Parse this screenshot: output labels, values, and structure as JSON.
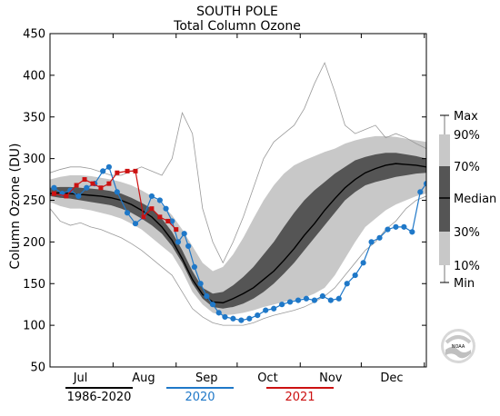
{
  "chart_data": {
    "type": "line",
    "title": "SOUTH POLE",
    "subtitle": "Total Column Ozone",
    "ylabel": "Column Ozone (DU)",
    "xlabel": "",
    "ylim": [
      50,
      450
    ],
    "yticks": [
      50,
      100,
      150,
      200,
      250,
      300,
      350,
      400,
      450
    ],
    "xlim": [
      0,
      185
    ],
    "month_labels": [
      {
        "label": "Jul",
        "x": 15
      },
      {
        "label": "Aug",
        "x": 46
      },
      {
        "label": "Sep",
        "x": 77
      },
      {
        "label": "Oct",
        "x": 107
      },
      {
        "label": "Nov",
        "x": 138
      },
      {
        "label": "Dec",
        "x": 168
      }
    ],
    "month_ticks": [
      0,
      31,
      62,
      92,
      123,
      153,
      184
    ],
    "x": [
      0,
      5,
      10,
      15,
      20,
      25,
      30,
      35,
      40,
      45,
      50,
      55,
      60,
      65,
      70,
      75,
      80,
      85,
      90,
      95,
      100,
      105,
      110,
      115,
      120,
      125,
      130,
      135,
      140,
      145,
      150,
      155,
      160,
      165,
      170,
      175,
      180,
      185
    ],
    "percentile_bands": {
      "min": [
        240,
        225,
        220,
        223,
        218,
        215,
        210,
        205,
        198,
        190,
        180,
        170,
        160,
        140,
        120,
        110,
        103,
        100,
        100,
        100,
        103,
        108,
        112,
        115,
        118,
        122,
        128,
        135,
        145,
        160,
        175,
        190,
        200,
        215,
        225,
        240,
        250,
        255
      ],
      "p10": [
        248,
        243,
        240,
        240,
        238,
        235,
        232,
        228,
        222,
        215,
        205,
        195,
        185,
        165,
        140,
        125,
        115,
        112,
        113,
        115,
        118,
        122,
        125,
        128,
        130,
        133,
        138,
        145,
        160,
        180,
        200,
        218,
        228,
        238,
        245,
        250,
        255,
        258
      ],
      "p30": [
        255,
        253,
        252,
        250,
        248,
        246,
        244,
        240,
        235,
        228,
        220,
        210,
        195,
        175,
        150,
        132,
        122,
        120,
        122,
        126,
        132,
        140,
        150,
        162,
        175,
        190,
        205,
        220,
        235,
        250,
        260,
        268,
        272,
        275,
        278,
        280,
        282,
        283
      ],
      "median": [
        258,
        259,
        258,
        257,
        256,
        255,
        253,
        250,
        245,
        238,
        230,
        218,
        202,
        180,
        155,
        137,
        128,
        127,
        132,
        138,
        145,
        155,
        165,
        178,
        192,
        208,
        222,
        238,
        252,
        265,
        275,
        283,
        288,
        292,
        294,
        293,
        292,
        290
      ],
      "p70": [
        265,
        266,
        266,
        265,
        264,
        263,
        261,
        258,
        253,
        247,
        240,
        228,
        212,
        190,
        165,
        145,
        138,
        140,
        148,
        158,
        170,
        185,
        200,
        218,
        235,
        250,
        262,
        272,
        282,
        290,
        298,
        302,
        305,
        307,
        307,
        305,
        303,
        300
      ],
      "p90": [
        275,
        278,
        280,
        280,
        279,
        277,
        275,
        272,
        268,
        262,
        255,
        245,
        232,
        215,
        195,
        175,
        165,
        170,
        185,
        205,
        228,
        250,
        268,
        282,
        292,
        298,
        303,
        308,
        312,
        318,
        322,
        325,
        327,
        327,
        326,
        324,
        322,
        320
      ],
      "max": [
        283,
        287,
        290,
        290,
        288,
        284,
        280,
        280,
        285,
        290,
        285,
        280,
        300,
        355,
        330,
        240,
        200,
        175,
        200,
        230,
        265,
        300,
        320,
        330,
        340,
        360,
        390,
        415,
        380,
        340,
        330,
        335,
        340,
        325,
        330,
        325,
        318,
        312
      ]
    },
    "series": [
      {
        "name": "1986-2020",
        "color": "#000000",
        "style": "median",
        "x": [
          0,
          5,
          10,
          15,
          20,
          25,
          30,
          35,
          40,
          45,
          50,
          55,
          60,
          65,
          70,
          75,
          80,
          85,
          90,
          95,
          100,
          105,
          110,
          115,
          120,
          125,
          130,
          135,
          140,
          145,
          150,
          155,
          160,
          165,
          170,
          175,
          180,
          185
        ],
        "y": [
          258,
          259,
          258,
          257,
          256,
          255,
          253,
          250,
          245,
          238,
          230,
          218,
          202,
          180,
          155,
          137,
          128,
          127,
          132,
          138,
          145,
          155,
          165,
          178,
          192,
          208,
          222,
          238,
          252,
          265,
          275,
          283,
          288,
          292,
          294,
          293,
          292,
          290
        ]
      },
      {
        "name": "2020",
        "color": "#1f78c8",
        "style": "line-dots",
        "x": [
          2,
          6,
          10,
          14,
          18,
          22,
          26,
          29,
          33,
          38,
          42,
          46,
          50,
          54,
          57,
          60,
          63,
          66,
          68,
          71,
          74,
          77,
          80,
          83,
          86,
          90,
          94,
          98,
          102,
          106,
          110,
          114,
          118,
          122,
          126,
          130,
          134,
          138,
          142,
          146,
          150,
          154,
          158,
          162,
          166,
          170,
          174,
          178,
          182,
          185
        ],
        "y": [
          265,
          258,
          262,
          255,
          265,
          270,
          285,
          290,
          260,
          235,
          222,
          230,
          255,
          250,
          240,
          225,
          200,
          210,
          195,
          170,
          150,
          135,
          125,
          115,
          110,
          108,
          106,
          108,
          112,
          118,
          120,
          125,
          128,
          130,
          132,
          130,
          135,
          130,
          132,
          150,
          160,
          175,
          200,
          205,
          215,
          218,
          218,
          212,
          260,
          270
        ]
      },
      {
        "name": "2021",
        "color": "#cc1111",
        "style": "line-squares",
        "x": [
          2,
          8,
          13,
          17,
          21,
          25,
          29,
          33,
          38,
          42,
          46,
          50,
          54,
          58,
          62
        ],
        "y": [
          258,
          255,
          268,
          275,
          270,
          265,
          270,
          283,
          285,
          285,
          230,
          240,
          230,
          225,
          215
        ]
      }
    ],
    "legend": {
      "placement": "right",
      "labels": [
        "Max",
        "90%",
        "70%",
        "Median",
        "30%",
        "10%",
        "Min"
      ]
    },
    "bottom_legend": [
      "1986-2020",
      "2020",
      "2021"
    ],
    "grid": false
  },
  "colors": {
    "dark_band": "#555555",
    "light_band": "#c8c8c8",
    "minmax_line": "#999999",
    "series_2020": "#1f78c8",
    "series_2021": "#cc1111",
    "median_line": "#000000"
  },
  "logo": {
    "text": "NOAA"
  }
}
